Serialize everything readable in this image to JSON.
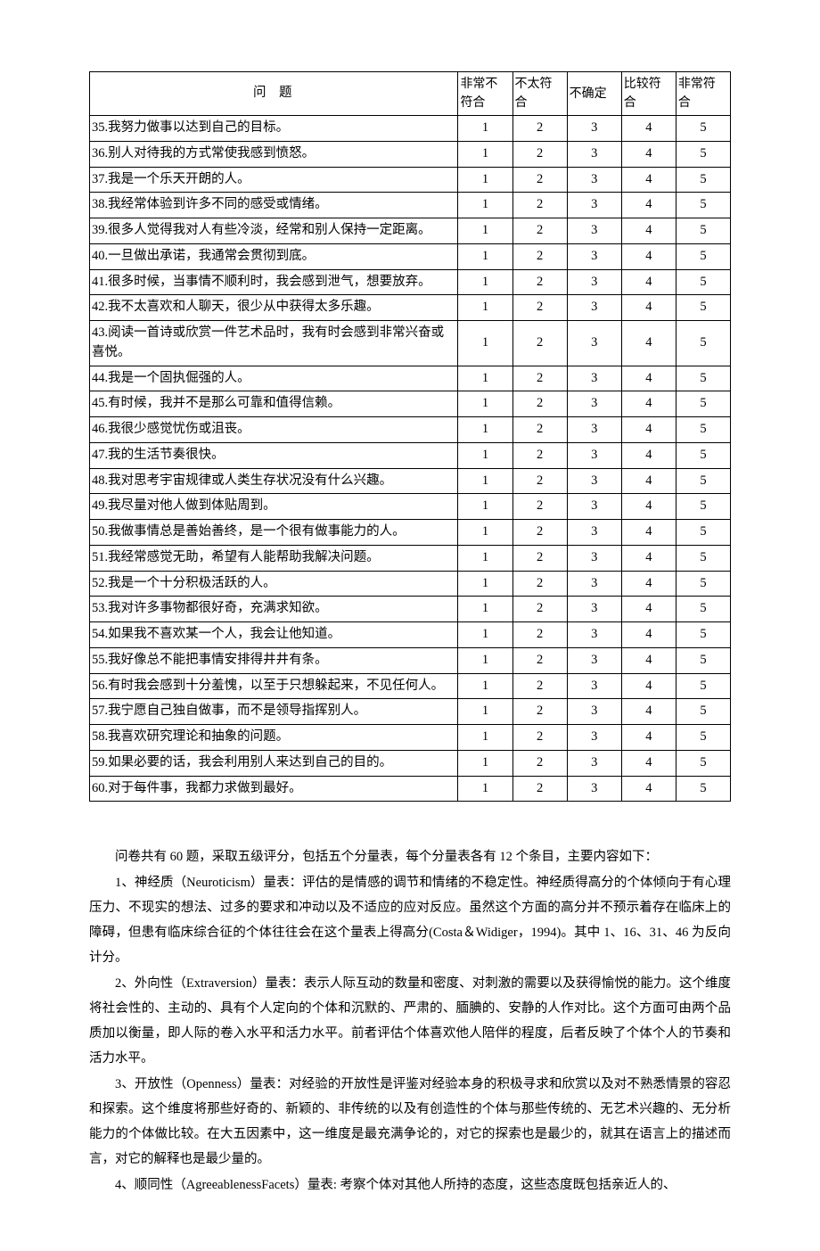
{
  "table": {
    "header": {
      "question": "问题",
      "c1_l1": "非常不",
      "c1_l2": "符合",
      "c2_l1": "不太符",
      "c2_l2": "合",
      "c3_l1": "不确定",
      "c3_l2": "",
      "c4_l1": "比较符",
      "c4_l2": "合",
      "c5_l1": "非常符",
      "c5_l2": "合"
    },
    "scale": [
      "1",
      "2",
      "3",
      "4",
      "5"
    ],
    "rows": [
      "35.我努力做事以达到自己的目标。",
      "36.别人对待我的方式常使我感到愤怒。",
      "37.我是一个乐天开朗的人。",
      "38.我经常体验到许多不同的感受或情绪。",
      "39.很多人觉得我对人有些冷淡，经常和别人保持一定距离。",
      "40.一旦做出承诺，我通常会贯彻到底。",
      "41.很多时候，当事情不顺利时，我会感到泄气，想要放弃。",
      "42.我不太喜欢和人聊天，很少从中获得太多乐趣。",
      "43.阅读一首诗或欣赏一件艺术品时，我有时会感到非常兴奋或喜悦。",
      "44.我是一个固执倔强的人。",
      "45.有时候，我并不是那么可靠和值得信赖。",
      "46.我很少感觉忧伤或沮丧。",
      "47.我的生活节奏很快。",
      "48.我对思考宇宙规律或人类生存状况没有什么兴趣。",
      "49.我尽量对他人做到体贴周到。",
      "50.我做事情总是善始善终，是一个很有做事能力的人。",
      "51.我经常感觉无助，希望有人能帮助我解决问题。",
      "52.我是一个十分积极活跃的人。",
      "53.我对许多事物都很好奇，充满求知欲。",
      "54.如果我不喜欢某一个人，我会让他知道。",
      "55.我好像总不能把事情安排得井井有条。",
      "56.有时我会感到十分羞愧，以至于只想躲起来，不见任何人。",
      "57.我宁愿自己独自做事，而不是领导指挥别人。",
      "58.我喜欢研究理论和抽象的问题。",
      "59.如果必要的话，我会利用别人来达到自己的目的。",
      "60.对于每件事，我都力求做到最好。"
    ]
  },
  "desc": {
    "intro": "问卷共有 60 题，采取五级评分，包括五个分量表，每个分量表各有 12 个条目，主要内容如下：",
    "p1": "1、神经质（Neuroticism）量表：评估的是情感的调节和情绪的不稳定性。神经质得高分的个体倾向于有心理压力、不现实的想法、过多的要求和冲动以及不适应的应对反应。虽然这个方面的高分并不预示着存在临床上的障碍，但患有临床综合征的个体往往会在这个量表上得高分(Costa＆Widiger，1994)。其中 1、16、31、46 为反向计分。",
    "p2": "2、外向性（Extraversion）量表：表示人际互动的数量和密度、对刺激的需要以及获得愉悦的能力。这个维度将社会性的、主动的、具有个人定向的个体和沉默的、严肃的、腼腆的、安静的人作对比。这个方面可由两个品质加以衡量，即人际的卷入水平和活力水平。前者评估个体喜欢他人陪伴的程度，后者反映了个体个人的节奏和活力水平。",
    "p3": "3、开放性（Openness）量表：对经验的开放性是评鉴对经验本身的积极寻求和欣赏以及对不熟悉情景的容忍和探索。这个维度将那些好奇的、新颖的、非传统的以及有创造性的个体与那些传统的、无艺术兴趣的、无分析能力的个体做比较。在大五因素中，这一维度是最充满争论的，对它的探索也是最少的，就其在语言上的描述而言，对它的解释也是最少量的。",
    "p4": "4、顺同性（AgreeablenessFacets）量表: 考察个体对其他人所持的态度，这些态度既包括亲近人的、"
  }
}
